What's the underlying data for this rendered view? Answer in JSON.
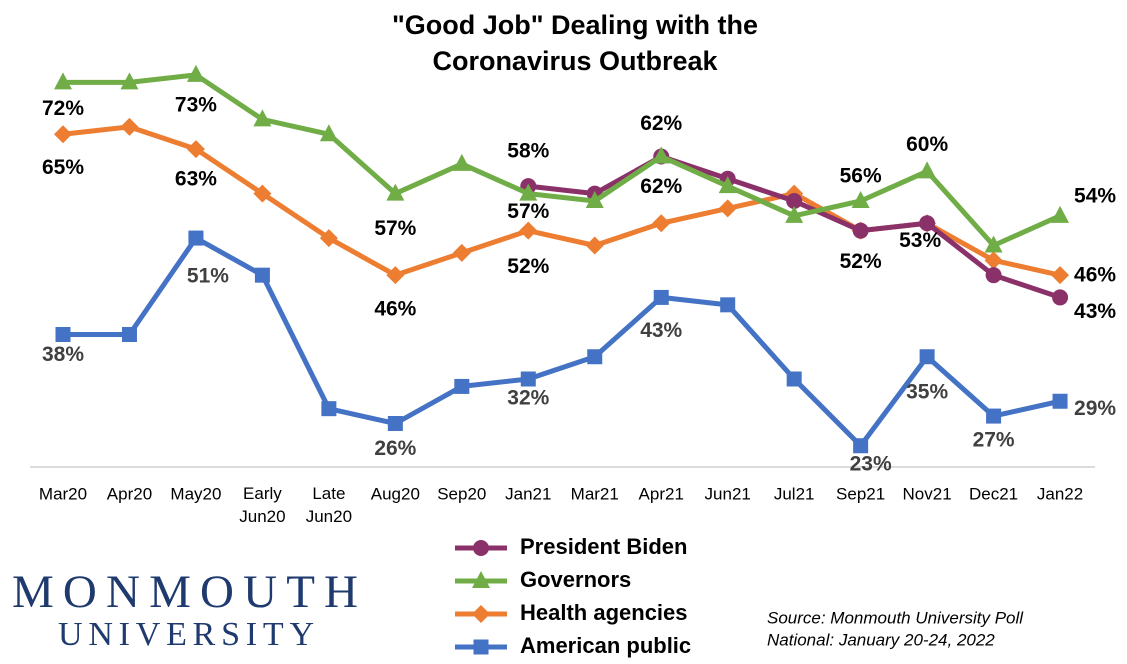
{
  "chart_data": {
    "type": "line",
    "title": "\"Good Job\" Dealing with the\nCoronavirus Outbreak",
    "categories": [
      "Mar20",
      "Apr20",
      "May20",
      "Early\nJun20",
      "Late\nJun20",
      "Aug20",
      "Sep20",
      "Jan21",
      "Mar21",
      "Apr21",
      "Jun21",
      "Jul21",
      "Sep21",
      "Nov21",
      "Dec21",
      "Jan22"
    ],
    "ylim": [
      20,
      80
    ],
    "series": [
      {
        "name": "President Biden",
        "color": "#8b3169",
        "marker": "circle",
        "values": [
          null,
          null,
          null,
          null,
          null,
          null,
          null,
          58,
          57,
          62,
          59,
          56,
          52,
          53,
          46,
          43
        ],
        "value_labels": [
          null,
          null,
          null,
          null,
          null,
          null,
          null,
          "58%",
          null,
          "62%",
          null,
          null,
          null,
          "53%",
          null,
          "43%"
        ]
      },
      {
        "name": "Governors",
        "color": "#70ad47",
        "marker": "triangle",
        "values": [
          72,
          72,
          73,
          67,
          65,
          57,
          61,
          57,
          56,
          62,
          58,
          54,
          56,
          60,
          50,
          54
        ],
        "value_labels": [
          "72%",
          null,
          "73%",
          null,
          null,
          "57%",
          null,
          "57%",
          null,
          "62%",
          null,
          null,
          "56%",
          "60%",
          null,
          "54%"
        ]
      },
      {
        "name": "Health agencies",
        "color": "#ed7d31",
        "marker": "diamond",
        "values": [
          65,
          66,
          63,
          57,
          51,
          46,
          49,
          52,
          50,
          53,
          55,
          57,
          52,
          53,
          48,
          46
        ],
        "value_labels": [
          "65%",
          null,
          "63%",
          null,
          null,
          "46%",
          null,
          "52%",
          null,
          null,
          null,
          null,
          "52%",
          null,
          null,
          "46%"
        ]
      },
      {
        "name": "American public",
        "color": "#4472c4",
        "marker": "square",
        "values": [
          38,
          38,
          51,
          46,
          28,
          26,
          31,
          32,
          35,
          43,
          42,
          32,
          23,
          35,
          27,
          29
        ],
        "value_labels": [
          "38%",
          null,
          "51%",
          null,
          null,
          "26%",
          null,
          "32%",
          null,
          "43%",
          null,
          null,
          "23%",
          "35%",
          "27%",
          "29%"
        ]
      }
    ],
    "source": [
      "Source:  Monmouth University Poll",
      "National: January 20-24, 2022"
    ]
  },
  "logo": {
    "line1": "MONMOUTH",
    "line2": "UNIVERSITY"
  }
}
